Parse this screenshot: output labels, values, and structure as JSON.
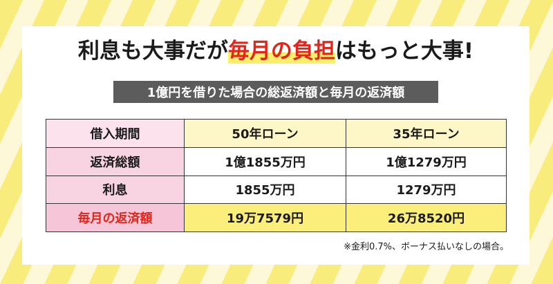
{
  "headline": {
    "part1": "利息も大事だが",
    "highlight": "毎月の負担",
    "part2": "はもっと大事!"
  },
  "subtitle": "1億円を借りた場合の総返済額と毎月の返済額",
  "table": {
    "header": {
      "label": "借入期間",
      "col50": "50年ローン",
      "col35": "35年ローン"
    },
    "rows": [
      {
        "label": "返済総額",
        "v50": "1億1855万円",
        "v35": "1億1279万円"
      },
      {
        "label": "利息",
        "v50": "1855万円",
        "v35": "1279万円"
      },
      {
        "label": "毎月の返済額",
        "v50": "19万7579円",
        "v35": "26万8520円"
      }
    ]
  },
  "note": "※金利0.7%、ボーナス払いなしの場合。",
  "colors": {
    "accent_red": "#e0261a",
    "highlight_yellow": "#fbee7a",
    "label_pink": "#f8d3e1",
    "subtitle_bg": "#5c5c5c"
  }
}
